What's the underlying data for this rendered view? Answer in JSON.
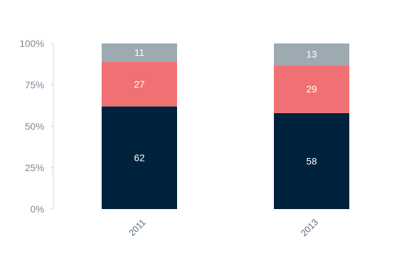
{
  "chart_data": {
    "type": "bar",
    "stacked": true,
    "categories": [
      "2011",
      "2013"
    ],
    "series": [
      {
        "values": [
          62,
          58
        ],
        "color": "#00233d"
      },
      {
        "values": [
          27,
          29
        ],
        "color": "#f07173"
      },
      {
        "values": [
          11,
          13
        ],
        "color": "#9eaab1"
      }
    ],
    "ylim": [
      0,
      100
    ],
    "yticks": [
      "0%",
      "25%",
      "50%",
      "75%",
      "100%"
    ],
    "ytick_values": [
      0,
      25,
      50,
      75,
      100
    ],
    "grid": false,
    "legend": "none",
    "title": "",
    "xlabel": "",
    "ylabel": ""
  }
}
